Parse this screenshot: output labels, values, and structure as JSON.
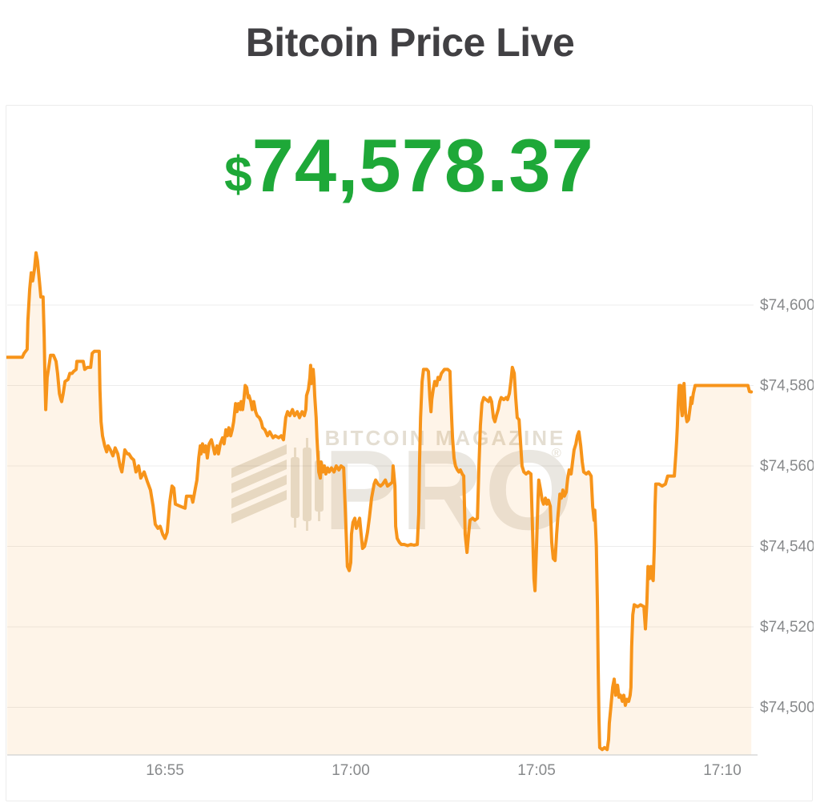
{
  "page": {
    "title": "Bitcoin Price Live"
  },
  "price": {
    "currency_symbol": "$",
    "value": "74,578.37",
    "color": "#1EA838"
  },
  "watermark": {
    "line1": "BITCOIN MAGAZINE",
    "line2": "PRO",
    "registered_mark": "®"
  },
  "chart_data": {
    "type": "area",
    "title": "Bitcoin Price Live",
    "unit": "USD",
    "line_color": "#F7941A",
    "fill_color": "rgba(247,148,26,0.10)",
    "grid": true,
    "x_axis": {
      "unit": "time of day",
      "start": "16:50:45",
      "end": "17:10:47",
      "ticks": [
        {
          "label": "16:55",
          "t": 5
        },
        {
          "label": "17:00",
          "t": 10
        },
        {
          "label": "17:05",
          "t": 15
        },
        {
          "label": "17:10",
          "t": 20
        }
      ]
    },
    "y_axis": {
      "labels_position": "right",
      "ticks": [
        {
          "label": "$74,600",
          "value": 74600
        },
        {
          "label": "$74,580",
          "value": 74580
        },
        {
          "label": "$74,560",
          "value": 74560
        },
        {
          "label": "$74,540",
          "value": 74540
        },
        {
          "label": "$74,520",
          "value": 74520
        },
        {
          "label": "$74,500",
          "value": 74500
        }
      ],
      "visible_range": [
        74488,
        74615
      ]
    },
    "points_format": "[minutes after 16:50, price in USD]",
    "points": [
      [
        0.75,
        74587
      ],
      [
        1.16,
        74587
      ],
      [
        1.21,
        74588
      ],
      [
        1.29,
        74589
      ],
      [
        1.31,
        74596
      ],
      [
        1.36,
        74604
      ],
      [
        1.4,
        74608
      ],
      [
        1.44,
        74606
      ],
      [
        1.49,
        74609
      ],
      [
        1.53,
        74613
      ],
      [
        1.57,
        74611
      ],
      [
        1.62,
        74606
      ],
      [
        1.66,
        74602
      ],
      [
        1.72,
        74602
      ],
      [
        1.75,
        74592
      ],
      [
        1.77,
        74582
      ],
      [
        1.79,
        74574
      ],
      [
        1.81,
        74578
      ],
      [
        1.83,
        74582
      ],
      [
        1.88,
        74585
      ],
      [
        1.92,
        74587.5
      ],
      [
        2.0,
        74587.5
      ],
      [
        2.07,
        74586
      ],
      [
        2.11,
        74583
      ],
      [
        2.16,
        74578
      ],
      [
        2.2,
        74576.5
      ],
      [
        2.22,
        74576
      ],
      [
        2.26,
        74578
      ],
      [
        2.31,
        74581
      ],
      [
        2.39,
        74581.5
      ],
      [
        2.44,
        74583
      ],
      [
        2.5,
        74583
      ],
      [
        2.54,
        74583.5
      ],
      [
        2.61,
        74584
      ],
      [
        2.63,
        74586
      ],
      [
        2.69,
        74586
      ],
      [
        2.8,
        74586
      ],
      [
        2.84,
        74584
      ],
      [
        2.91,
        74584.5
      ],
      [
        3.0,
        74584.5
      ],
      [
        3.04,
        74588
      ],
      [
        3.1,
        74588.5
      ],
      [
        3.23,
        74588.5
      ],
      [
        3.25,
        74579
      ],
      [
        3.28,
        74571
      ],
      [
        3.32,
        74567.5
      ],
      [
        3.38,
        74565
      ],
      [
        3.43,
        74563.5
      ],
      [
        3.47,
        74565
      ],
      [
        3.53,
        74564
      ],
      [
        3.6,
        74562.5
      ],
      [
        3.66,
        74564.5
      ],
      [
        3.73,
        74563
      ],
      [
        3.79,
        74560
      ],
      [
        3.84,
        74558.5
      ],
      [
        3.88,
        74561
      ],
      [
        3.92,
        74564
      ],
      [
        3.99,
        74563
      ],
      [
        4.03,
        74563
      ],
      [
        4.1,
        74562
      ],
      [
        4.16,
        74561.5
      ],
      [
        4.22,
        74558.5
      ],
      [
        4.29,
        74560
      ],
      [
        4.35,
        74557
      ],
      [
        4.44,
        74558.5
      ],
      [
        4.53,
        74556
      ],
      [
        4.61,
        74554
      ],
      [
        4.68,
        74550
      ],
      [
        4.74,
        74545.5
      ],
      [
        4.81,
        74544.5
      ],
      [
        4.87,
        74545
      ],
      [
        4.94,
        74543
      ],
      [
        5.0,
        74542
      ],
      [
        5.06,
        74543.5
      ],
      [
        5.13,
        74551
      ],
      [
        5.19,
        74555
      ],
      [
        5.24,
        74554.5
      ],
      [
        5.28,
        74550.5
      ],
      [
        5.41,
        74550
      ],
      [
        5.54,
        74549.5
      ],
      [
        5.58,
        74552.5
      ],
      [
        5.71,
        74552.5
      ],
      [
        5.75,
        74551
      ],
      [
        5.82,
        74554.5
      ],
      [
        5.86,
        74556.5
      ],
      [
        5.91,
        74562
      ],
      [
        5.95,
        74565
      ],
      [
        5.97,
        74563
      ],
      [
        6.01,
        74565.5
      ],
      [
        6.06,
        74563.5
      ],
      [
        6.1,
        74565
      ],
      [
        6.14,
        74562
      ],
      [
        6.19,
        74565.5
      ],
      [
        6.25,
        74566.5
      ],
      [
        6.29,
        74565
      ],
      [
        6.34,
        74563
      ],
      [
        6.4,
        74565
      ],
      [
        6.44,
        74563
      ],
      [
        6.49,
        74565.5
      ],
      [
        6.55,
        74567
      ],
      [
        6.59,
        74565.5
      ],
      [
        6.64,
        74569
      ],
      [
        6.68,
        74567.5
      ],
      [
        6.72,
        74569.5
      ],
      [
        6.77,
        74567.5
      ],
      [
        6.81,
        74569
      ],
      [
        6.85,
        74571
      ],
      [
        6.9,
        74575.5
      ],
      [
        6.94,
        74573.5
      ],
      [
        6.98,
        74575.5
      ],
      [
        7.03,
        74574
      ],
      [
        7.05,
        74576
      ],
      [
        7.09,
        74574
      ],
      [
        7.13,
        74577
      ],
      [
        7.16,
        74580
      ],
      [
        7.2,
        74579.5
      ],
      [
        7.24,
        74577
      ],
      [
        7.26,
        74577.5
      ],
      [
        7.31,
        74576
      ],
      [
        7.35,
        74574
      ],
      [
        7.39,
        74576
      ],
      [
        7.44,
        74573.5
      ],
      [
        7.48,
        74572.5
      ],
      [
        7.54,
        74572
      ],
      [
        7.59,
        74571
      ],
      [
        7.63,
        74569.5
      ],
      [
        7.69,
        74569
      ],
      [
        7.76,
        74567.5
      ],
      [
        7.82,
        74568.5
      ],
      [
        7.91,
        74567
      ],
      [
        7.97,
        74567.5
      ],
      [
        8.06,
        74567
      ],
      [
        8.13,
        74567.5
      ],
      [
        8.19,
        74566.5
      ],
      [
        8.25,
        74572
      ],
      [
        8.3,
        74573.5
      ],
      [
        8.36,
        74572.5
      ],
      [
        8.43,
        74574
      ],
      [
        8.49,
        74572.5
      ],
      [
        8.56,
        74573.5
      ],
      [
        8.62,
        74572
      ],
      [
        8.69,
        74573.5
      ],
      [
        8.75,
        74572.5
      ],
      [
        8.79,
        74574
      ],
      [
        8.81,
        74577.5
      ],
      [
        8.86,
        74579
      ],
      [
        8.9,
        74582
      ],
      [
        8.92,
        74585
      ],
      [
        8.94,
        74580.5
      ],
      [
        8.99,
        74584
      ],
      [
        9.01,
        74581.5
      ],
      [
        9.03,
        74577.5
      ],
      [
        9.07,
        74572
      ],
      [
        9.09,
        74567
      ],
      [
        9.14,
        74558.5
      ],
      [
        9.18,
        74557
      ],
      [
        9.2,
        74561
      ],
      [
        9.25,
        74558.5
      ],
      [
        9.29,
        74560
      ],
      [
        9.33,
        74558
      ],
      [
        9.38,
        74559.5
      ],
      [
        9.42,
        74558.5
      ],
      [
        9.48,
        74559.5
      ],
      [
        9.55,
        74558.5
      ],
      [
        9.61,
        74560
      ],
      [
        9.68,
        74559
      ],
      [
        9.74,
        74560
      ],
      [
        9.81,
        74559.5
      ],
      [
        9.85,
        74550
      ],
      [
        9.89,
        74540
      ],
      [
        9.91,
        74535
      ],
      [
        9.96,
        74534
      ],
      [
        10.0,
        74536
      ],
      [
        10.02,
        74543
      ],
      [
        10.06,
        74546
      ],
      [
        10.11,
        74547
      ],
      [
        10.15,
        74544.5
      ],
      [
        10.19,
        74545.5
      ],
      [
        10.24,
        74547
      ],
      [
        10.28,
        74543
      ],
      [
        10.32,
        74539.5
      ],
      [
        10.37,
        74540
      ],
      [
        10.41,
        74541.5
      ],
      [
        10.45,
        74543.5
      ],
      [
        10.5,
        74547
      ],
      [
        10.56,
        74552
      ],
      [
        10.63,
        74555.5
      ],
      [
        10.67,
        74556.5
      ],
      [
        10.73,
        74555.5
      ],
      [
        10.8,
        74555
      ],
      [
        10.86,
        74555.5
      ],
      [
        10.93,
        74556.5
      ],
      [
        10.99,
        74555
      ],
      [
        11.06,
        74555.5
      ],
      [
        11.12,
        74556
      ],
      [
        11.14,
        74560
      ],
      [
        11.19,
        74555
      ],
      [
        11.21,
        74545
      ],
      [
        11.25,
        74542
      ],
      [
        11.31,
        74541
      ],
      [
        11.36,
        74540.5
      ],
      [
        11.44,
        74540.5
      ],
      [
        11.53,
        74540.2
      ],
      [
        11.62,
        74540.5
      ],
      [
        11.7,
        74540.3
      ],
      [
        11.79,
        74540.5
      ],
      [
        11.83,
        74548
      ],
      [
        11.85,
        74560
      ],
      [
        11.88,
        74572
      ],
      [
        11.92,
        74581
      ],
      [
        11.96,
        74584
      ],
      [
        12.05,
        74584
      ],
      [
        12.09,
        74583.5
      ],
      [
        12.13,
        74577
      ],
      [
        12.16,
        74573.5
      ],
      [
        12.18,
        74576.5
      ],
      [
        12.22,
        74579
      ],
      [
        12.26,
        74581
      ],
      [
        12.31,
        74580
      ],
      [
        12.35,
        74582
      ],
      [
        12.39,
        74581.5
      ],
      [
        12.44,
        74583
      ],
      [
        12.48,
        74583.5
      ],
      [
        12.52,
        74584
      ],
      [
        12.61,
        74584
      ],
      [
        12.67,
        74583.5
      ],
      [
        12.69,
        74578
      ],
      [
        12.72,
        74571
      ],
      [
        12.74,
        74567
      ],
      [
        12.78,
        74562
      ],
      [
        12.82,
        74560
      ],
      [
        12.87,
        74559
      ],
      [
        12.91,
        74558.5
      ],
      [
        12.95,
        74559
      ],
      [
        13.0,
        74558
      ],
      [
        13.04,
        74557.5
      ],
      [
        13.08,
        74543
      ],
      [
        13.13,
        74538.5
      ],
      [
        13.17,
        74543
      ],
      [
        13.21,
        74546.5
      ],
      [
        13.28,
        74547
      ],
      [
        13.34,
        74546.5
      ],
      [
        13.41,
        74547
      ],
      [
        13.45,
        74560
      ],
      [
        13.49,
        74570
      ],
      [
        13.53,
        74575.5
      ],
      [
        13.58,
        74577
      ],
      [
        13.64,
        74576.5
      ],
      [
        13.71,
        74576
      ],
      [
        13.75,
        74577
      ],
      [
        13.79,
        74576
      ],
      [
        13.84,
        74572
      ],
      [
        13.88,
        74571
      ],
      [
        13.92,
        74572.5
      ],
      [
        13.97,
        74574
      ],
      [
        14.01,
        74576
      ],
      [
        14.05,
        74577
      ],
      [
        14.12,
        74576.5
      ],
      [
        14.18,
        74577
      ],
      [
        14.22,
        74576.5
      ],
      [
        14.27,
        74578
      ],
      [
        14.31,
        74581
      ],
      [
        14.35,
        74584.5
      ],
      [
        14.4,
        74583
      ],
      [
        14.44,
        74577
      ],
      [
        14.48,
        74572
      ],
      [
        14.53,
        74571.5
      ],
      [
        14.57,
        74566
      ],
      [
        14.61,
        74560
      ],
      [
        14.66,
        74558.5
      ],
      [
        14.72,
        74558
      ],
      [
        14.78,
        74558.5
      ],
      [
        14.85,
        74558
      ],
      [
        14.89,
        74545
      ],
      [
        14.93,
        74532
      ],
      [
        14.96,
        74529
      ],
      [
        15.0,
        74540
      ],
      [
        15.04,
        74552
      ],
      [
        15.06,
        74556.5
      ],
      [
        15.11,
        74554
      ],
      [
        15.15,
        74551.5
      ],
      [
        15.19,
        74550.5
      ],
      [
        15.24,
        74552
      ],
      [
        15.28,
        74550.5
      ],
      [
        15.32,
        74551.5
      ],
      [
        15.37,
        74550
      ],
      [
        15.41,
        74541
      ],
      [
        15.45,
        74537
      ],
      [
        15.5,
        74536.5
      ],
      [
        15.54,
        74543
      ],
      [
        15.58,
        74548
      ],
      [
        15.63,
        74553
      ],
      [
        15.67,
        74552
      ],
      [
        15.71,
        74554
      ],
      [
        15.75,
        74552.5
      ],
      [
        15.8,
        74553.5
      ],
      [
        15.84,
        74557
      ],
      [
        15.88,
        74559
      ],
      [
        15.93,
        74558
      ],
      [
        15.97,
        74561
      ],
      [
        16.01,
        74564
      ],
      [
        16.06,
        74565.5
      ],
      [
        16.1,
        74567.5
      ],
      [
        16.14,
        74568.5
      ],
      [
        16.19,
        74565
      ],
      [
        16.23,
        74561
      ],
      [
        16.27,
        74558.5
      ],
      [
        16.34,
        74558
      ],
      [
        16.4,
        74558.5
      ],
      [
        16.47,
        74557.5
      ],
      [
        16.51,
        74550
      ],
      [
        16.55,
        74546.5
      ],
      [
        16.57,
        74549
      ],
      [
        16.61,
        74540
      ],
      [
        16.64,
        74525
      ],
      [
        16.66,
        74510
      ],
      [
        16.68,
        74497
      ],
      [
        16.7,
        74490
      ],
      [
        16.77,
        74489.5
      ],
      [
        16.83,
        74490
      ],
      [
        16.9,
        74489.5
      ],
      [
        16.94,
        74492
      ],
      [
        16.96,
        74496
      ],
      [
        17.0,
        74500
      ],
      [
        17.05,
        74505
      ],
      [
        17.09,
        74507
      ],
      [
        17.13,
        74503
      ],
      [
        17.18,
        74505.5
      ],
      [
        17.22,
        74502.5
      ],
      [
        17.26,
        74503
      ],
      [
        17.31,
        74501.5
      ],
      [
        17.35,
        74503
      ],
      [
        17.39,
        74500.5
      ],
      [
        17.43,
        74502
      ],
      [
        17.48,
        74501.5
      ],
      [
        17.52,
        74503
      ],
      [
        17.54,
        74505
      ],
      [
        17.56,
        74515
      ],
      [
        17.59,
        74523
      ],
      [
        17.63,
        74525.5
      ],
      [
        17.72,
        74525
      ],
      [
        17.8,
        74525.5
      ],
      [
        17.89,
        74525
      ],
      [
        17.93,
        74519.5
      ],
      [
        17.97,
        74526
      ],
      [
        18.0,
        74535
      ],
      [
        18.04,
        74532
      ],
      [
        18.08,
        74535
      ],
      [
        18.1,
        74532.5
      ],
      [
        18.14,
        74531.5
      ],
      [
        18.17,
        74540
      ],
      [
        18.19,
        74550
      ],
      [
        18.21,
        74555.5
      ],
      [
        18.3,
        74555.5
      ],
      [
        18.38,
        74555
      ],
      [
        18.47,
        74555.5
      ],
      [
        18.53,
        74557.5
      ],
      [
        18.62,
        74557.5
      ],
      [
        18.71,
        74557.5
      ],
      [
        18.75,
        74563
      ],
      [
        18.77,
        74566
      ],
      [
        18.79,
        74570
      ],
      [
        18.81,
        74575
      ],
      [
        18.84,
        74580
      ],
      [
        18.88,
        74580
      ],
      [
        18.9,
        74574
      ],
      [
        18.92,
        74572.5
      ],
      [
        18.94,
        74577
      ],
      [
        18.97,
        74580.5
      ],
      [
        19.01,
        74573
      ],
      [
        19.05,
        74571
      ],
      [
        19.09,
        74571.5
      ],
      [
        19.14,
        74575
      ],
      [
        19.16,
        74577
      ],
      [
        19.18,
        74575.5
      ],
      [
        19.22,
        74578
      ],
      [
        19.27,
        74580
      ],
      [
        19.44,
        74580
      ],
      [
        19.66,
        74580
      ],
      [
        19.87,
        74580
      ],
      [
        20.09,
        74580
      ],
      [
        20.3,
        74580
      ],
      [
        20.52,
        74580
      ],
      [
        20.65,
        74580
      ],
      [
        20.69,
        74580
      ],
      [
        20.73,
        74578.5
      ],
      [
        20.78,
        74578.4
      ]
    ]
  }
}
